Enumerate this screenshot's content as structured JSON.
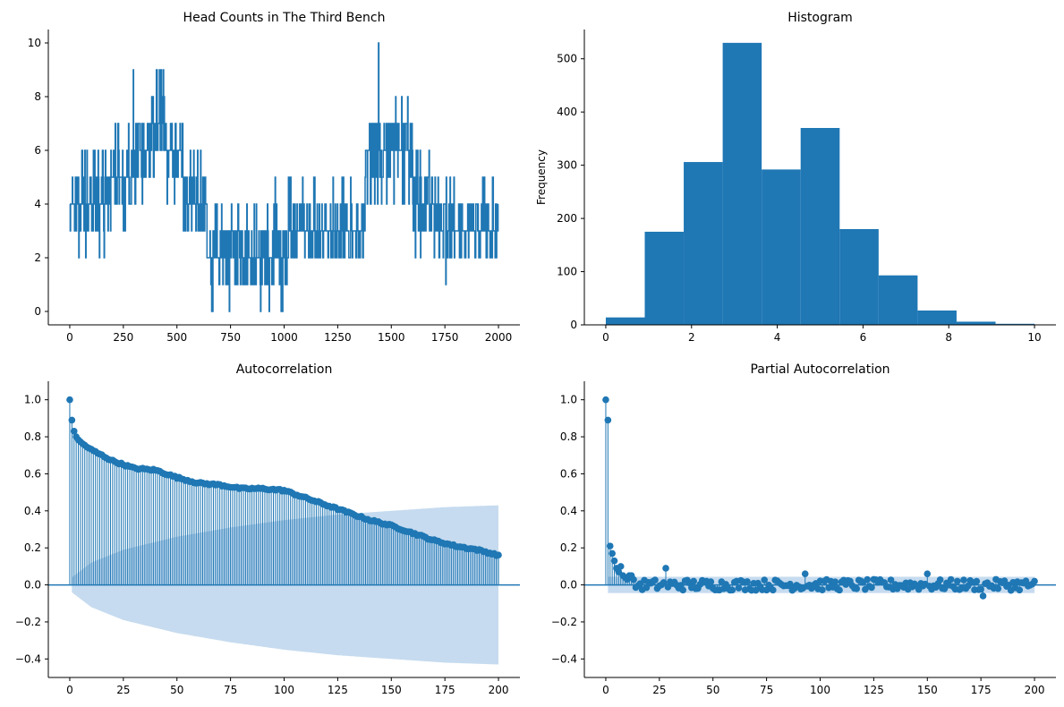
{
  "colors": {
    "series": "#1f77b4",
    "confidence_band": "#c6dbef",
    "axis": "#000000"
  },
  "chart_data": [
    {
      "id": "timeseries",
      "type": "line",
      "title": "Head Counts in The Third Bench",
      "xlabel": "",
      "ylabel": "",
      "xlim": [
        -100,
        2100
      ],
      "ylim": [
        -0.5,
        10.5
      ],
      "xticks": [
        0,
        250,
        500,
        750,
        1000,
        1250,
        1500,
        1750,
        2000
      ],
      "yticks": [
        0,
        2,
        4,
        6,
        8,
        10
      ],
      "regimes": [
        {
          "x0": 0,
          "x1": 60,
          "base": 4,
          "lo": 2,
          "hi": 7
        },
        {
          "x0": 60,
          "x1": 180,
          "base": 4,
          "lo": 2,
          "hi": 6
        },
        {
          "x0": 180,
          "x1": 300,
          "base": 5,
          "lo": 3,
          "hi": 9
        },
        {
          "x0": 300,
          "x1": 360,
          "base": 6,
          "lo": 3,
          "hi": 9
        },
        {
          "x0": 360,
          "x1": 450,
          "base": 7,
          "lo": 5,
          "hi": 10
        },
        {
          "x0": 450,
          "x1": 530,
          "base": 6,
          "lo": 4,
          "hi": 8
        },
        {
          "x0": 530,
          "x1": 640,
          "base": 4,
          "lo": 3,
          "hi": 6
        },
        {
          "x0": 640,
          "x1": 760,
          "base": 2,
          "lo": 0,
          "hi": 4
        },
        {
          "x0": 760,
          "x1": 880,
          "base": 2,
          "lo": 1,
          "hi": 4
        },
        {
          "x0": 880,
          "x1": 1020,
          "base": 2,
          "lo": 0,
          "hi": 5
        },
        {
          "x0": 1020,
          "x1": 1130,
          "base": 3,
          "lo": 2,
          "hi": 5
        },
        {
          "x0": 1130,
          "x1": 1280,
          "base": 3,
          "lo": 2,
          "hi": 6
        },
        {
          "x0": 1280,
          "x1": 1380,
          "base": 3,
          "lo": 2,
          "hi": 5
        },
        {
          "x0": 1380,
          "x1": 1480,
          "base": 6,
          "lo": 4,
          "hi": 10
        },
        {
          "x0": 1480,
          "x1": 1600,
          "base": 6,
          "lo": 4,
          "hi": 8
        },
        {
          "x0": 1600,
          "x1": 1700,
          "base": 4,
          "lo": 2,
          "hi": 6
        },
        {
          "x0": 1700,
          "x1": 1800,
          "base": 3,
          "lo": 1,
          "hi": 5
        },
        {
          "x0": 1800,
          "x1": 1900,
          "base": 3,
          "lo": 2,
          "hi": 4
        },
        {
          "x0": 1900,
          "x1": 2000,
          "base": 3,
          "lo": 2,
          "hi": 5
        }
      ]
    },
    {
      "id": "histogram",
      "type": "bar",
      "title": "Histogram",
      "xlabel": "",
      "ylabel": "Frequency",
      "xlim": [
        -0.5,
        10.5
      ],
      "ylim": [
        0,
        555
      ],
      "xticks": [
        0,
        2,
        4,
        6,
        8,
        10
      ],
      "yticks": [
        0,
        100,
        200,
        300,
        400,
        500
      ],
      "bin_edges": [
        0,
        0.909,
        1.818,
        2.727,
        3.636,
        4.545,
        5.455,
        6.364,
        7.273,
        8.182,
        9.091,
        10
      ],
      "values": [
        14,
        175,
        306,
        530,
        292,
        370,
        180,
        93,
        27,
        6,
        2
      ]
    },
    {
      "id": "acf",
      "type": "scatter",
      "title": "Autocorrelation",
      "xlabel": "",
      "ylabel": "",
      "xlim": [
        -10,
        210
      ],
      "ylim": [
        -0.5,
        1.1
      ],
      "xticks": [
        0,
        25,
        50,
        75,
        100,
        125,
        150,
        175,
        200
      ],
      "yticks": [
        -0.4,
        -0.2,
        0.0,
        0.2,
        0.4,
        0.6,
        0.8,
        1.0
      ],
      "nlags": 200,
      "anchor_lags": [
        0,
        1,
        2,
        3,
        5,
        10,
        20,
        30,
        40,
        50,
        60,
        70,
        80,
        90,
        100,
        110,
        120,
        130,
        140,
        150,
        160,
        170,
        180,
        190,
        200
      ],
      "anchor_values": [
        1.0,
        0.89,
        0.83,
        0.8,
        0.77,
        0.73,
        0.67,
        0.63,
        0.62,
        0.58,
        0.55,
        0.54,
        0.52,
        0.52,
        0.51,
        0.47,
        0.43,
        0.39,
        0.35,
        0.32,
        0.28,
        0.24,
        0.21,
        0.19,
        0.16
      ],
      "band_anchor_lags": [
        1,
        10,
        25,
        50,
        75,
        100,
        125,
        150,
        175,
        200
      ],
      "band_anchor_values": [
        0.04,
        0.12,
        0.19,
        0.26,
        0.31,
        0.35,
        0.38,
        0.4,
        0.42,
        0.43
      ]
    },
    {
      "id": "pacf",
      "type": "scatter",
      "title": "Partial Autocorrelation",
      "xlabel": "",
      "ylabel": "",
      "xlim": [
        -10,
        210
      ],
      "ylim": [
        -0.5,
        1.1
      ],
      "xticks": [
        0,
        25,
        50,
        75,
        100,
        125,
        150,
        175,
        200
      ],
      "yticks": [
        -0.4,
        -0.2,
        0.0,
        0.2,
        0.4,
        0.6,
        0.8,
        1.0
      ],
      "nlags": 200,
      "head_values": [
        1.0,
        0.89,
        0.21,
        0.17,
        0.13,
        0.09,
        0.07,
        0.1,
        0.05,
        0.04,
        0.03,
        0.05,
        0.05
      ],
      "tail_amplitude": 0.03,
      "notable_lags": [
        28,
        93,
        150,
        176
      ],
      "notable_values": [
        0.09,
        0.06,
        0.06,
        -0.06
      ],
      "band": 0.044
    }
  ]
}
